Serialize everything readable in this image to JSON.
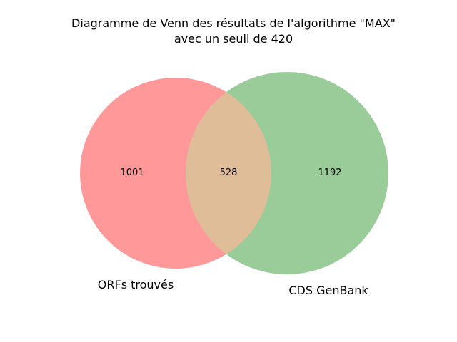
{
  "title": {
    "line1": "Diagramme de Venn des résultats de l'algorithme \"MAX\"",
    "line2": "avec un seuil de 420"
  },
  "chart_data": {
    "type": "venn",
    "sets": [
      {
        "label": "ORFs trouvés",
        "only_count": "1001",
        "color": "#ff9999"
      },
      {
        "label": "CDS GenBank",
        "only_count": "1192",
        "color": "#99cc99"
      }
    ],
    "intersection": {
      "count": "528",
      "color": "#e0bd99"
    }
  }
}
